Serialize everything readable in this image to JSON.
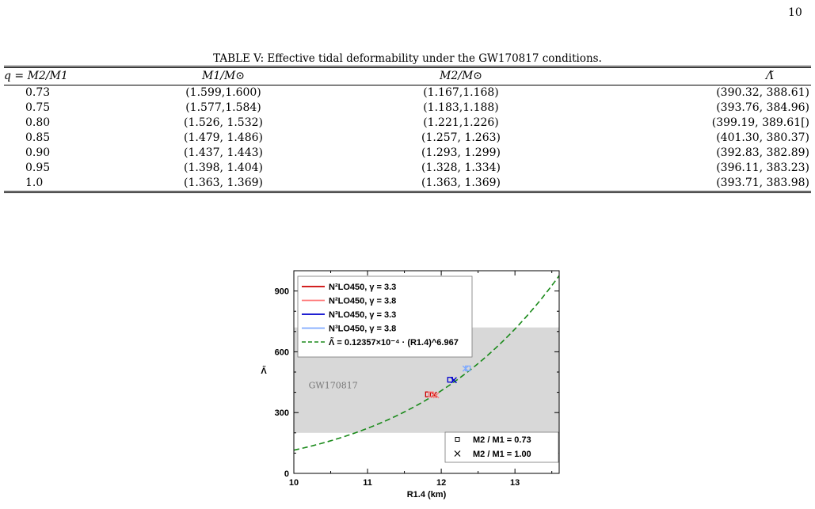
{
  "page_number": "10",
  "table": {
    "caption": "TABLE V: Effective tidal deformability under the GW170817 conditions.",
    "headers": [
      "q = M2/M1",
      "M1/M⊙",
      "M2/M⊙",
      "Λ̃"
    ],
    "rows": [
      [
        "0.73",
        "(1.599,1.600)",
        "(1.167,1.168)",
        "(390.32, 388.61)"
      ],
      [
        "0.75",
        "(1.577,1.584)",
        "(1.183,1.188)",
        "(393.76, 384.96)"
      ],
      [
        "0.80",
        "(1.526, 1.532)",
        "(1.221,1.226)",
        "(399.19, 389.61[)"
      ],
      [
        "0.85",
        "(1.479, 1.486)",
        "(1.257, 1.263)",
        "(401.30, 380.37)"
      ],
      [
        "0.90",
        "(1.437, 1.443)",
        "(1.293, 1.299)",
        "(392.83, 382.89)"
      ],
      [
        "0.95",
        "(1.398, 1.404)",
        "(1.328, 1.334)",
        "(396.11, 383.23)"
      ],
      [
        "1.0",
        "(1.363, 1.369)",
        "(1.363, 1.369)",
        "(393.71, 383.98)"
      ]
    ]
  },
  "chart_data": {
    "type": "scatter",
    "xlabel": "R1.4 (km)",
    "ylabel": "Λ̃",
    "xlim": [
      10,
      13.6
    ],
    "ylim": [
      0,
      1000
    ],
    "xticks": [
      10,
      11,
      12,
      13
    ],
    "yticks": [
      0,
      300,
      600,
      900
    ],
    "band": {
      "label": "GW170817",
      "y_range": [
        200,
        720
      ],
      "color": "#d8d8d8"
    },
    "fit": {
      "label": "Λ̃ = 0.12357×10⁻⁴ · (R1.4)^6.967",
      "coef": 1.2357e-05,
      "exponent": 6.967,
      "color": "#1a8a1a"
    },
    "series": [
      {
        "name": "N²LO450, γ = 3.3",
        "color": "#cc0000",
        "points": [
          {
            "x": 11.82,
            "y": 390,
            "marker": "square"
          },
          {
            "x": 11.9,
            "y": 388,
            "marker": "cross"
          }
        ]
      },
      {
        "name": "N²LO450, γ = 3.8",
        "color": "#ff7a7a",
        "points": [
          {
            "x": 11.86,
            "y": 390,
            "marker": "square"
          },
          {
            "x": 11.93,
            "y": 385,
            "marker": "cross"
          }
        ]
      },
      {
        "name": "N³LO450, γ = 3.3",
        "color": "#0000cc",
        "points": [
          {
            "x": 12.12,
            "y": 462,
            "marker": "square"
          },
          {
            "x": 12.17,
            "y": 460,
            "marker": "cross"
          }
        ]
      },
      {
        "name": "N³LO450, γ = 3.8",
        "color": "#7faaff",
        "points": [
          {
            "x": 12.36,
            "y": 518,
            "marker": "square"
          },
          {
            "x": 12.33,
            "y": 517,
            "marker": "cross"
          }
        ]
      }
    ],
    "marker_legend": [
      {
        "marker": "square",
        "label": "M2 / M1 = 0.73"
      },
      {
        "marker": "cross",
        "label": "M2 / M1 = 1.00"
      }
    ]
  }
}
